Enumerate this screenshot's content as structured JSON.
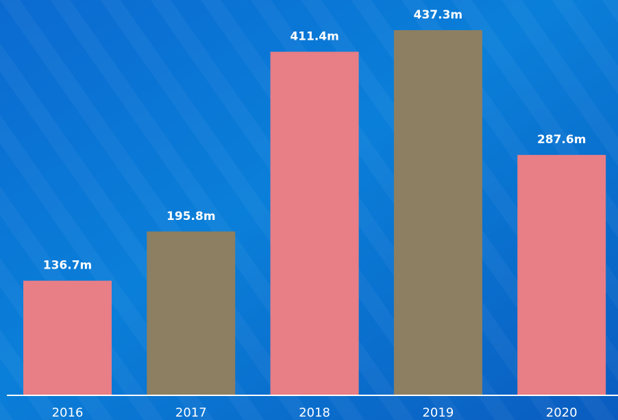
{
  "chart_data": {
    "type": "bar",
    "categories": [
      "2016",
      "2017",
      "2018",
      "2019",
      "2020"
    ],
    "values": [
      136.7,
      195.8,
      411.4,
      437.3,
      287.6
    ],
    "value_labels": [
      "136.7m",
      "195.8m",
      "411.4m",
      "437.3m",
      "287.6m"
    ],
    "colors": [
      "#e87e86",
      "#8c7f62",
      "#e87e86",
      "#8c7f62",
      "#e87e86"
    ]
  }
}
